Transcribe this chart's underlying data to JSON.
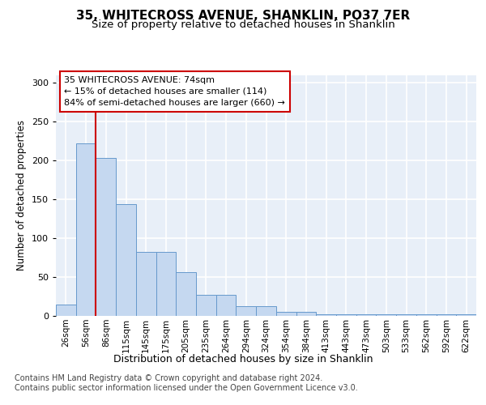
{
  "title": "35, WHITECROSS AVENUE, SHANKLIN, PO37 7ER",
  "subtitle": "Size of property relative to detached houses in Shanklin",
  "xlabel": "Distribution of detached houses by size in Shanklin",
  "ylabel": "Number of detached properties",
  "bar_labels": [
    "26sqm",
    "56sqm",
    "86sqm",
    "115sqm",
    "145sqm",
    "175sqm",
    "205sqm",
    "235sqm",
    "264sqm",
    "294sqm",
    "324sqm",
    "354sqm",
    "384sqm",
    "413sqm",
    "443sqm",
    "473sqm",
    "503sqm",
    "533sqm",
    "562sqm",
    "592sqm",
    "622sqm"
  ],
  "bar_heights": [
    15,
    222,
    203,
    144,
    82,
    82,
    56,
    27,
    27,
    12,
    12,
    5,
    5,
    2,
    2,
    2,
    2,
    2,
    2,
    2,
    2
  ],
  "bar_color": "#c5d8f0",
  "bar_edge_color": "#6699cc",
  "background_color": "#e8eff8",
  "grid_color": "#ffffff",
  "vline_color": "#cc0000",
  "annotation_text": "35 WHITECROSS AVENUE: 74sqm\n← 15% of detached houses are smaller (114)\n84% of semi-detached houses are larger (660) →",
  "annotation_box_color": "#ffffff",
  "annotation_box_edge": "#cc0000",
  "footer_text": "Contains HM Land Registry data © Crown copyright and database right 2024.\nContains public sector information licensed under the Open Government Licence v3.0.",
  "ylim": [
    0,
    310
  ],
  "yticks": [
    0,
    50,
    100,
    150,
    200,
    250,
    300
  ],
  "title_fontsize": 11,
  "subtitle_fontsize": 9.5,
  "footer_fontsize": 7
}
